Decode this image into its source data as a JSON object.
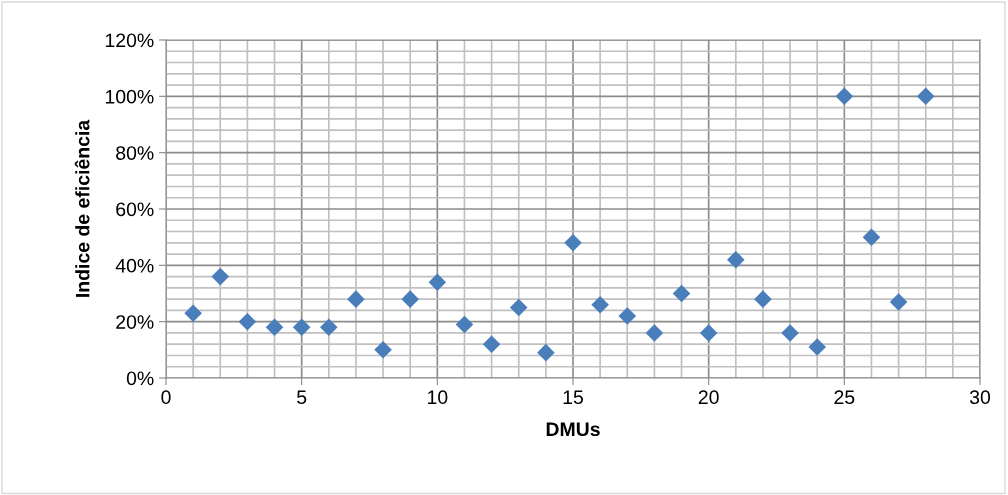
{
  "chart_data": {
    "type": "scatter",
    "xlabel": "DMUs",
    "ylabel": "Indice de eficiência",
    "x": [
      1,
      2,
      3,
      4,
      5,
      6,
      7,
      8,
      9,
      10,
      11,
      12,
      13,
      14,
      15,
      16,
      17,
      18,
      19,
      20,
      21,
      22,
      23,
      24,
      25,
      26,
      27,
      28
    ],
    "values": [
      23,
      36,
      20,
      18,
      18,
      18,
      28,
      10,
      28,
      34,
      19,
      12,
      25,
      9,
      48,
      26,
      22,
      16,
      30,
      16,
      42,
      28,
      16,
      11,
      100,
      50,
      27,
      100
    ],
    "color": "#4a7ebb",
    "marker": "diamond",
    "xlim": [
      0,
      30
    ],
    "xticks": [
      0,
      5,
      10,
      15,
      20,
      25,
      30
    ],
    "ylim": [
      0,
      120
    ],
    "yticks": [
      {
        "value": 0,
        "label": "0%"
      },
      {
        "value": 20,
        "label": "20%"
      },
      {
        "value": 40,
        "label": "40%"
      },
      {
        "value": 60,
        "label": "60%"
      },
      {
        "value": 80,
        "label": "80%"
      },
      {
        "value": 100,
        "label": "100%"
      },
      {
        "value": 120,
        "label": "120%"
      }
    ],
    "grid": true,
    "legend": false
  }
}
